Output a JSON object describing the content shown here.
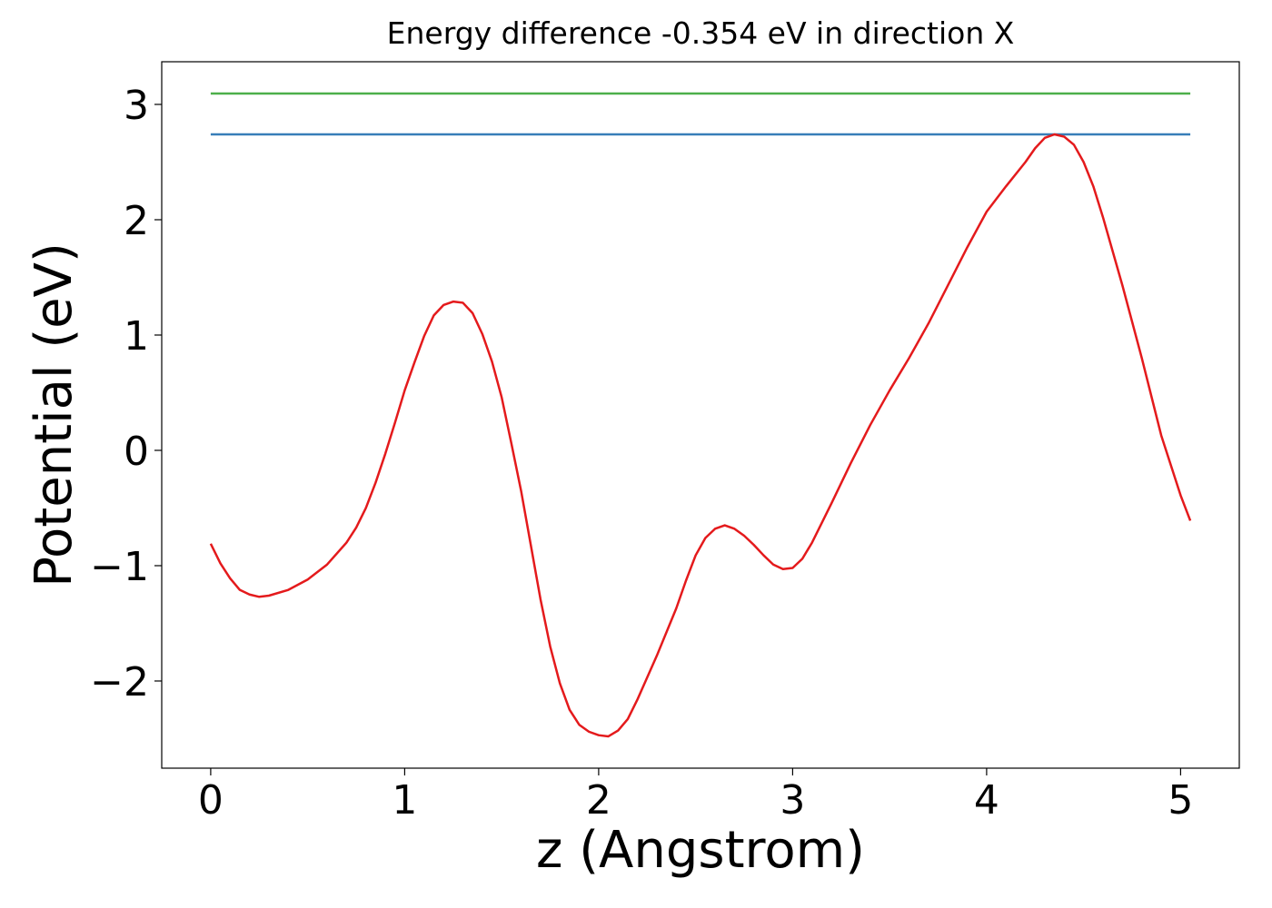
{
  "chart_data": {
    "type": "line",
    "title": "Energy difference -0.354 eV in direction X",
    "x_label": "z (Angstrom)",
    "y_label": "Potential (eV)",
    "xlim": [
      -0.2525,
      5.3025
    ],
    "ylim": [
      -2.756,
      3.37
    ],
    "xticks": [
      0,
      1,
      2,
      3,
      4,
      5
    ],
    "yticks": [
      {
        "value": -2,
        "label": "−2"
      },
      {
        "value": -1,
        "label": "−1"
      },
      0,
      1,
      2,
      3
    ],
    "grid": false,
    "series": [
      {
        "color": "#4daf4a",
        "x": [
          0,
          5.05
        ],
        "values": [
          3.094,
          3.094
        ]
      },
      {
        "color": "#377eb8",
        "x": [
          0,
          5.05
        ],
        "values": [
          2.74,
          2.74
        ]
      },
      {
        "color": "#e41a1c",
        "x": [
          0,
          0.05,
          0.1,
          0.15,
          0.2,
          0.25,
          0.3,
          0.4,
          0.5,
          0.6,
          0.7,
          0.75,
          0.8,
          0.85,
          0.9,
          0.95,
          1.0,
          1.05,
          1.1,
          1.15,
          1.2,
          1.25,
          1.3,
          1.35,
          1.4,
          1.45,
          1.5,
          1.55,
          1.6,
          1.65,
          1.7,
          1.75,
          1.8,
          1.85,
          1.9,
          1.95,
          2.0,
          2.05,
          2.1,
          2.15,
          2.2,
          2.3,
          2.4,
          2.45,
          2.5,
          2.55,
          2.6,
          2.65,
          2.7,
          2.75,
          2.8,
          2.85,
          2.9,
          2.95,
          3.0,
          3.05,
          3.1,
          3.2,
          3.3,
          3.4,
          3.5,
          3.6,
          3.7,
          3.8,
          3.9,
          4.0,
          4.1,
          4.2,
          4.25,
          4.3,
          4.35,
          4.4,
          4.45,
          4.5,
          4.55,
          4.6,
          4.7,
          4.8,
          4.9,
          5.0,
          5.05
        ],
        "values": [
          -0.81,
          -0.98,
          -1.11,
          -1.21,
          -1.25,
          -1.27,
          -1.26,
          -1.21,
          -1.12,
          -0.99,
          -0.8,
          -0.67,
          -0.5,
          -0.28,
          -0.03,
          0.24,
          0.52,
          0.76,
          0.99,
          1.17,
          1.26,
          1.29,
          1.28,
          1.19,
          1.01,
          0.77,
          0.46,
          0.06,
          -0.35,
          -0.82,
          -1.29,
          -1.7,
          -2.02,
          -2.25,
          -2.38,
          -2.44,
          -2.47,
          -2.48,
          -2.43,
          -2.33,
          -2.16,
          -1.78,
          -1.37,
          -1.13,
          -0.91,
          -0.76,
          -0.68,
          -0.65,
          -0.68,
          -0.74,
          -0.82,
          -0.91,
          -0.99,
          -1.03,
          -1.02,
          -0.94,
          -0.8,
          -0.46,
          -0.11,
          0.22,
          0.52,
          0.8,
          1.1,
          1.43,
          1.76,
          2.07,
          2.29,
          2.5,
          2.62,
          2.71,
          2.74,
          2.72,
          2.65,
          2.5,
          2.29,
          2.02,
          1.43,
          0.8,
          0.13,
          -0.39,
          -0.61
        ]
      }
    ]
  }
}
